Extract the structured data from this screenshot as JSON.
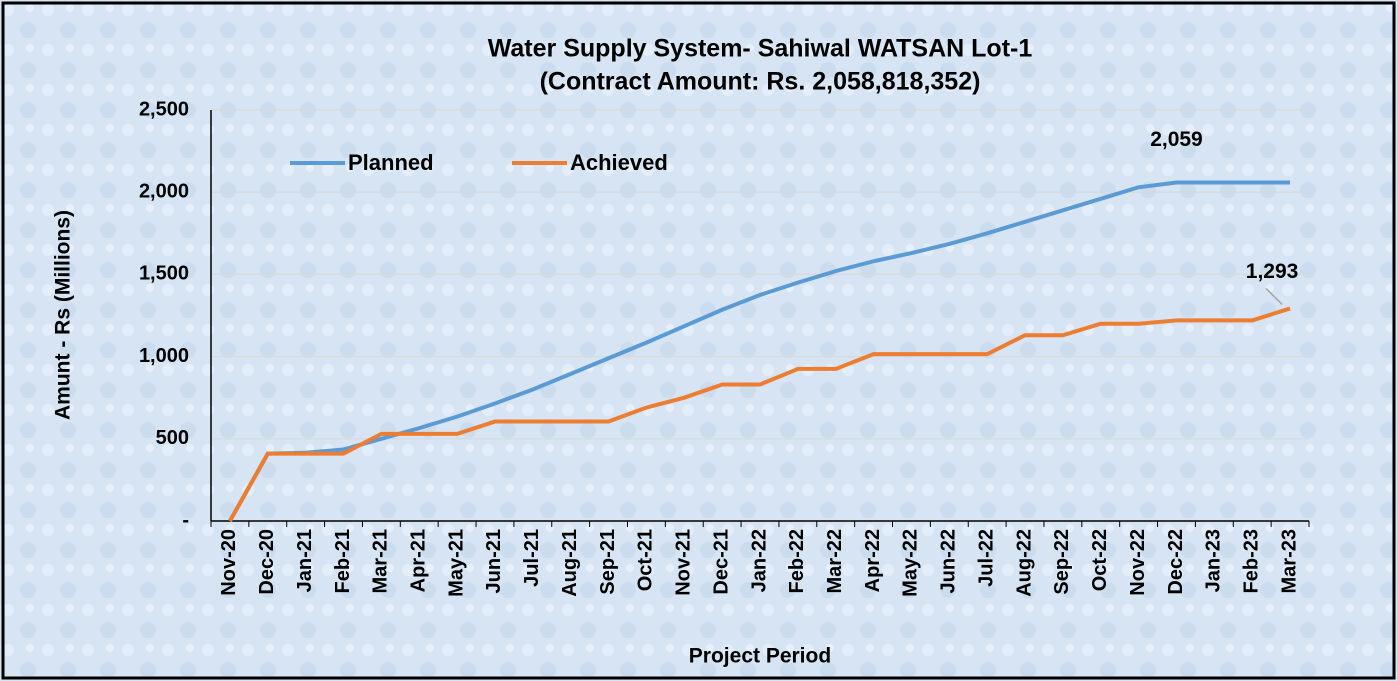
{
  "chart_data": {
    "type": "line",
    "title": "Water Supply System- Sahiwal WATSAN Lot-1",
    "subtitle": "(Contract Amount: Rs. 2,058,818,352)",
    "x_label": "Project Period",
    "y_label": "Amunt - Rs (Millions)",
    "categories": [
      "Nov-20",
      "Dec-20",
      "Jan-21",
      "Feb-21",
      "Mar-21",
      "Apr-21",
      "May-21",
      "Jun-21",
      "Jul-21",
      "Aug-21",
      "Sep-21",
      "Oct-21",
      "Nov-21",
      "Dec-21",
      "Jan-22",
      "Feb-22",
      "Mar-22",
      "Apr-22",
      "May-22",
      "Jun-22",
      "Jul-22",
      "Aug-22",
      "Sep-22",
      "Oct-22",
      "Nov-22",
      "Dec-22",
      "Jan-23",
      "Feb-23",
      "Mar-23"
    ],
    "series": [
      {
        "name": "Planned",
        "color": "#5b9bd5",
        "values": [
          0,
          410,
          415,
          435,
          500,
          565,
          635,
          715,
          800,
          895,
          990,
          1085,
          1185,
          1285,
          1375,
          1450,
          1520,
          1580,
          1630,
          1685,
          1750,
          1820,
          1890,
          1960,
          2030,
          2059,
          2059,
          2059,
          2059
        ],
        "value_labels": [
          null,
          null,
          null,
          null,
          null,
          null,
          null,
          null,
          null,
          null,
          null,
          null,
          null,
          null,
          null,
          null,
          null,
          null,
          null,
          null,
          null,
          null,
          null,
          null,
          null,
          "2,059",
          null,
          null,
          null
        ]
      },
      {
        "name": "Achieved",
        "color": "#ed7d31",
        "values": [
          0,
          410,
          410,
          410,
          530,
          530,
          530,
          605,
          605,
          605,
          605,
          690,
          750,
          830,
          830,
          925,
          925,
          1015,
          1015,
          1015,
          1015,
          1130,
          1130,
          1200,
          1200,
          1220,
          1220,
          1220,
          1293
        ],
        "value_labels": [
          null,
          null,
          null,
          null,
          null,
          null,
          null,
          null,
          null,
          null,
          null,
          null,
          null,
          null,
          null,
          null,
          null,
          null,
          null,
          null,
          null,
          null,
          null,
          null,
          null,
          null,
          null,
          null,
          "1,293"
        ]
      }
    ],
    "ylim": [
      0,
      2500
    ],
    "yticks": [
      {
        "value": 0,
        "label": "-"
      },
      500,
      {
        "value": 1000,
        "label": "1,000"
      },
      {
        "value": 1500,
        "label": "1,500"
      },
      {
        "value": 2000,
        "label": "2,000"
      },
      {
        "value": 2500,
        "label": "2,500"
      }
    ],
    "grid": true
  }
}
